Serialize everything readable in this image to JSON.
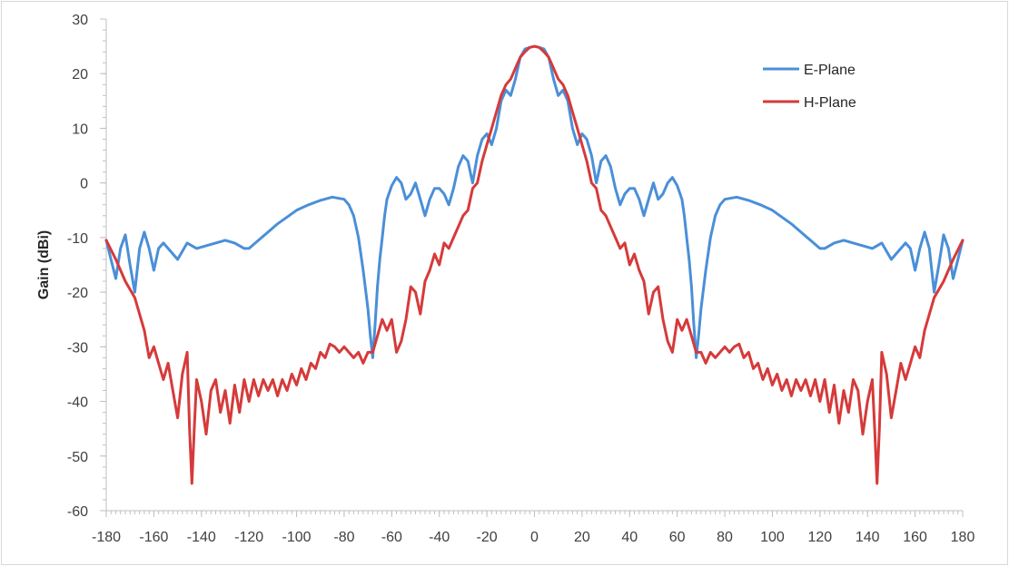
{
  "colors": {
    "e_plane": "#4A8FD8",
    "h_plane": "#D63A3A",
    "axis": "#BFBFBF",
    "frame": "#D9D9D9"
  },
  "chart_data": {
    "type": "line",
    "title": "",
    "xlabel": "",
    "ylabel": "Gain (dBi)",
    "xlim": [
      -180,
      180
    ],
    "ylim": [
      -60,
      30
    ],
    "xticks": [
      -180,
      -160,
      -140,
      -120,
      -100,
      -80,
      -60,
      -40,
      -20,
      0,
      20,
      40,
      60,
      80,
      100,
      120,
      140,
      160,
      180
    ],
    "yticks": [
      30,
      20,
      10,
      0,
      -10,
      -20,
      -30,
      -40,
      -50,
      -60
    ],
    "grid": false,
    "legend_position": "top-right",
    "series": [
      {
        "name": "E-Plane",
        "color": "#4A8FD8",
        "x": [
          -180,
          -178,
          -176,
          -174,
          -172,
          -170,
          -168,
          -166,
          -164,
          -162,
          -160,
          -158,
          -156,
          -154,
          -150,
          -146,
          -142,
          -138,
          -134,
          -130,
          -126,
          -122,
          -120,
          -116,
          -112,
          -108,
          -100,
          -95,
          -90,
          -85,
          -80,
          -78,
          -76,
          -74,
          -72,
          -70,
          -69,
          -68,
          -67,
          -66,
          -65,
          -64,
          -63,
          -62,
          -60,
          -58,
          -56,
          -54,
          -52,
          -50,
          -48,
          -46,
          -44,
          -42,
          -40,
          -38,
          -36,
          -34,
          -32,
          -30,
          -28,
          -26,
          -24,
          -22,
          -20,
          -18,
          -16,
          -14,
          -12,
          -10,
          -8,
          -6,
          -4,
          -2,
          0,
          2,
          4,
          6,
          8,
          10,
          12,
          14,
          16,
          18,
          20,
          22,
          24,
          26,
          28,
          30,
          32,
          34,
          36,
          38,
          40,
          42,
          44,
          46,
          48,
          50,
          52,
          54,
          56,
          58,
          60,
          62,
          63,
          64,
          65,
          66,
          67,
          68,
          69,
          70,
          72,
          74,
          76,
          78,
          80,
          85,
          90,
          95,
          100,
          108,
          112,
          116,
          120,
          122,
          126,
          130,
          134,
          138,
          142,
          146,
          150,
          154,
          156,
          158,
          160,
          162,
          164,
          166,
          168,
          170,
          172,
          174,
          176,
          178,
          180
        ],
        "y": [
          -10.5,
          -14,
          -17.5,
          -12,
          -9.5,
          -15,
          -20,
          -12,
          -9,
          -12,
          -16,
          -12,
          -11,
          -12,
          -14,
          -11,
          -12,
          -11.5,
          -11,
          -10.5,
          -11,
          -12,
          -12,
          -10.5,
          -9,
          -7.5,
          -5,
          -4,
          -3.2,
          -2.6,
          -3,
          -4,
          -6,
          -10,
          -16,
          -23,
          -28,
          -32,
          -26,
          -19,
          -14,
          -10,
          -6,
          -3,
          -0.5,
          1,
          0,
          -3,
          -2,
          0,
          -3,
          -6,
          -3,
          -1,
          -1,
          -2,
          -4,
          -1,
          3,
          5,
          4,
          0,
          5,
          8,
          9,
          7,
          10,
          15,
          17,
          16,
          19,
          23,
          24.5,
          24.8,
          25,
          24.8,
          24.5,
          23,
          19,
          16,
          17,
          15,
          10,
          7,
          9,
          8,
          5,
          0,
          4,
          5,
          3,
          -1,
          -4,
          -2,
          -1,
          -1,
          -3,
          -6,
          -3,
          0,
          -3,
          -2,
          0,
          1,
          -0.5,
          -3,
          -6,
          -10,
          -14,
          -19,
          -26,
          -32,
          -28,
          -23,
          -16,
          -10,
          -6,
          -4,
          -3,
          -2.6,
          -3.2,
          -4,
          -5,
          -7.5,
          -9,
          -10.5,
          -12,
          -12,
          -11,
          -10.5,
          -11,
          -11.5,
          -12,
          -11,
          -14,
          -12,
          -11,
          -12,
          -16,
          -12,
          -9,
          -12,
          -20,
          -15,
          -9.5,
          -12,
          -17.5,
          -14,
          -10.5
        ]
      },
      {
        "name": "H-Plane",
        "color": "#D63A3A",
        "x": [
          -180,
          -176,
          -172,
          -168,
          -164,
          -162,
          -160,
          -158,
          -156,
          -154,
          -152,
          -150,
          -148,
          -146,
          -145,
          -144,
          -143,
          -142,
          -140,
          -138,
          -136,
          -134,
          -132,
          -130,
          -128,
          -126,
          -124,
          -122,
          -120,
          -118,
          -116,
          -114,
          -112,
          -110,
          -108,
          -106,
          -104,
          -102,
          -100,
          -98,
          -96,
          -94,
          -92,
          -90,
          -88,
          -86,
          -84,
          -82,
          -80,
          -78,
          -76,
          -74,
          -72,
          -70,
          -68,
          -66,
          -64,
          -62,
          -60,
          -58,
          -56,
          -54,
          -52,
          -50,
          -48,
          -46,
          -44,
          -42,
          -40,
          -38,
          -36,
          -34,
          -32,
          -30,
          -28,
          -26,
          -24,
          -22,
          -20,
          -18,
          -16,
          -14,
          -12,
          -10,
          -8,
          -6,
          -4,
          -2,
          0,
          2,
          4,
          6,
          8,
          10,
          12,
          14,
          16,
          18,
          20,
          22,
          24,
          26,
          28,
          30,
          32,
          34,
          36,
          38,
          40,
          42,
          44,
          46,
          48,
          50,
          52,
          54,
          56,
          58,
          60,
          62,
          64,
          66,
          68,
          70,
          72,
          74,
          76,
          78,
          80,
          82,
          84,
          86,
          88,
          90,
          92,
          94,
          96,
          98,
          100,
          102,
          104,
          106,
          108,
          110,
          112,
          114,
          116,
          118,
          120,
          122,
          124,
          126,
          128,
          130,
          132,
          134,
          136,
          138,
          140,
          142,
          143,
          144,
          145,
          146,
          148,
          150,
          152,
          154,
          156,
          158,
          160,
          162,
          164,
          168,
          172,
          176,
          180
        ],
        "y": [
          -10.5,
          -14,
          -18,
          -21,
          -27,
          -32,
          -30,
          -33,
          -36,
          -33,
          -38,
          -43,
          -35,
          -31,
          -45,
          -55,
          -45,
          -36,
          -40,
          -46,
          -38,
          -36,
          -42,
          -38,
          -44,
          -37,
          -42,
          -36,
          -40,
          -36,
          -39,
          -36,
          -38,
          -36,
          -39,
          -36,
          -38,
          -35,
          -37,
          -34,
          -36,
          -33,
          -34,
          -31,
          -32,
          -29.5,
          -30,
          -31,
          -30,
          -31,
          -32,
          -31,
          -33,
          -31,
          -31,
          -28,
          -25,
          -27,
          -25,
          -31,
          -29,
          -25,
          -19,
          -20,
          -24,
          -18,
          -16,
          -13,
          -15,
          -11,
          -12,
          -10,
          -8,
          -6,
          -5,
          -1,
          0,
          4,
          7,
          10,
          13,
          16,
          18,
          19,
          21,
          23,
          24,
          24.8,
          25,
          24.8,
          24,
          23,
          21,
          19,
          18,
          16,
          13,
          10,
          7,
          4,
          0,
          -1,
          -5,
          -6,
          -8,
          -10,
          -12,
          -11,
          -15,
          -13,
          -16,
          -18,
          -24,
          -20,
          -19,
          -25,
          -29,
          -31,
          -25,
          -27,
          -25,
          -28,
          -31,
          -31,
          -33,
          -31,
          -32,
          -31,
          -30,
          -31,
          -30,
          -29.5,
          -32,
          -31,
          -34,
          -33,
          -36,
          -34,
          -37,
          -35,
          -38,
          -36,
          -39,
          -36,
          -38,
          -36,
          -39,
          -36,
          -40,
          -36,
          -42,
          -37,
          -44,
          -38,
          -42,
          -36,
          -38,
          -46,
          -40,
          -36,
          -45,
          -55,
          -45,
          -31,
          -35,
          -43,
          -38,
          -33,
          -36,
          -33,
          -30,
          -32,
          -27,
          -21,
          -18,
          -14,
          -10.5
        ]
      }
    ]
  }
}
